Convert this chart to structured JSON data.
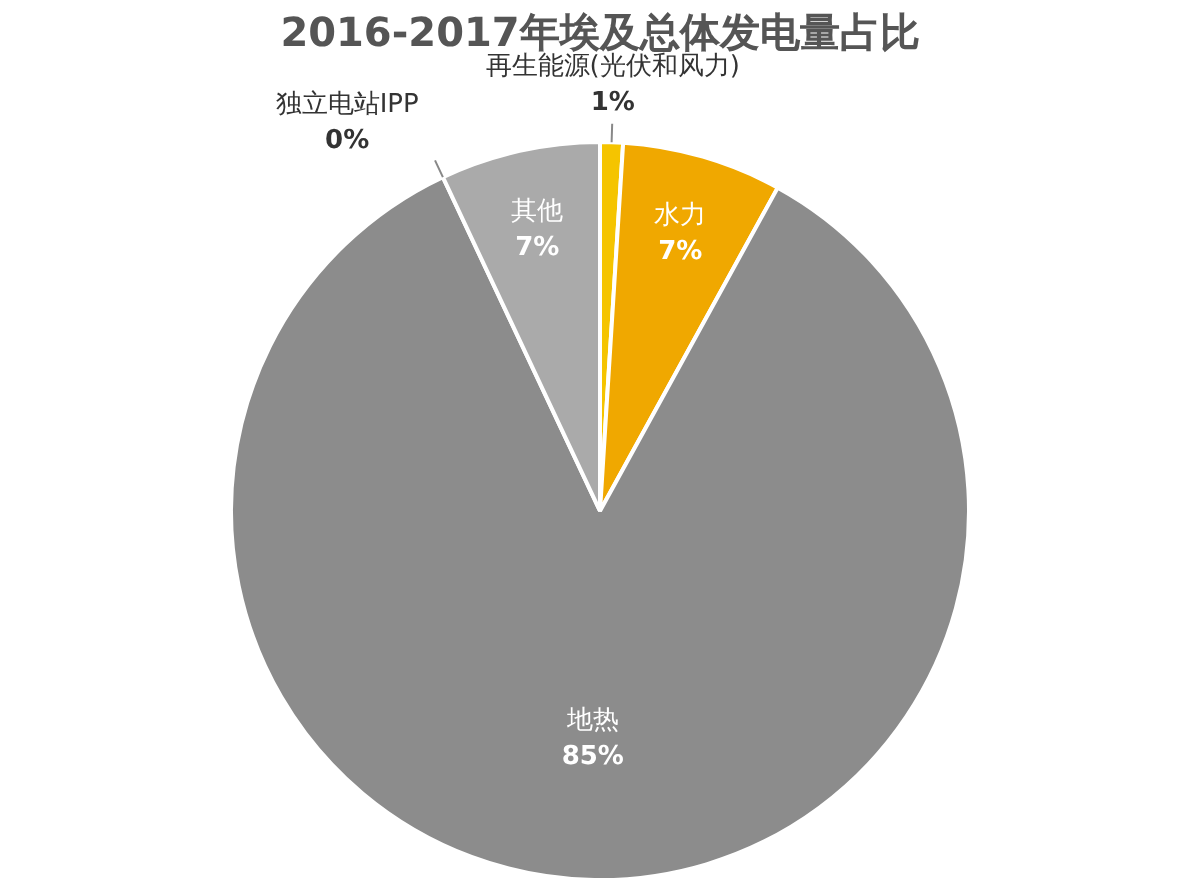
{
  "chart_data": {
    "type": "pie",
    "title": "2016-2017年埃及总体发电量占比",
    "categories": [
      "再生能源(光伏和风力)",
      "水力",
      "地热",
      "独立电站IPP",
      "其他"
    ],
    "values": [
      1,
      7,
      85,
      0,
      7
    ],
    "colors": [
      "#f5c400",
      "#f0a800",
      "#8c8c8c",
      "#9a9a9a",
      "#aaaaaa"
    ],
    "value_labels": [
      "1%",
      "7%",
      "85%",
      "0%",
      "7%"
    ],
    "legend": false
  }
}
